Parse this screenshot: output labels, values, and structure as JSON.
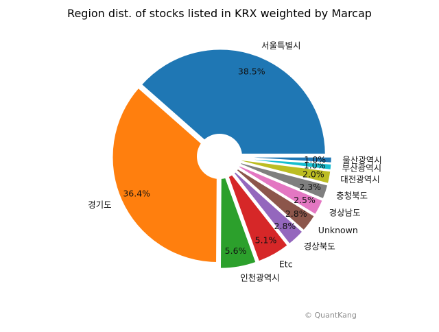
{
  "chart_data": {
    "type": "pie",
    "title": "Region dist. of stocks listed in KRX weighted by Marcap",
    "categories": [
      "서울특별시",
      "경기도",
      "인천광역시",
      "Etc",
      "경상북도",
      "Unknown",
      "경상남도",
      "충청북도",
      "대전광역시",
      "부산광역시",
      "울산광역시"
    ],
    "values": [
      38.5,
      36.4,
      5.6,
      5.1,
      2.8,
      2.8,
      2.5,
      2.3,
      2.0,
      1.0,
      1.0
    ],
    "value_labels": [
      "38.5%",
      "36.4%",
      "5.6%",
      "5.1%",
      "2.8%",
      "2.8%",
      "2.5%",
      "2.3%",
      "2.0%",
      "1.0%",
      "1.0%"
    ],
    "colors": [
      "#1f77b4",
      "#ff7f0e",
      "#2ca02c",
      "#d62728",
      "#9467bd",
      "#8c564b",
      "#e377c2",
      "#7f7f7f",
      "#bcbd22",
      "#17becf",
      "#1f77b4"
    ],
    "start_angle_deg": 0,
    "direction": "counterclockwise",
    "donut_hole": true,
    "exploded": true,
    "legend": "none"
  },
  "watermark": "© QuantKang"
}
